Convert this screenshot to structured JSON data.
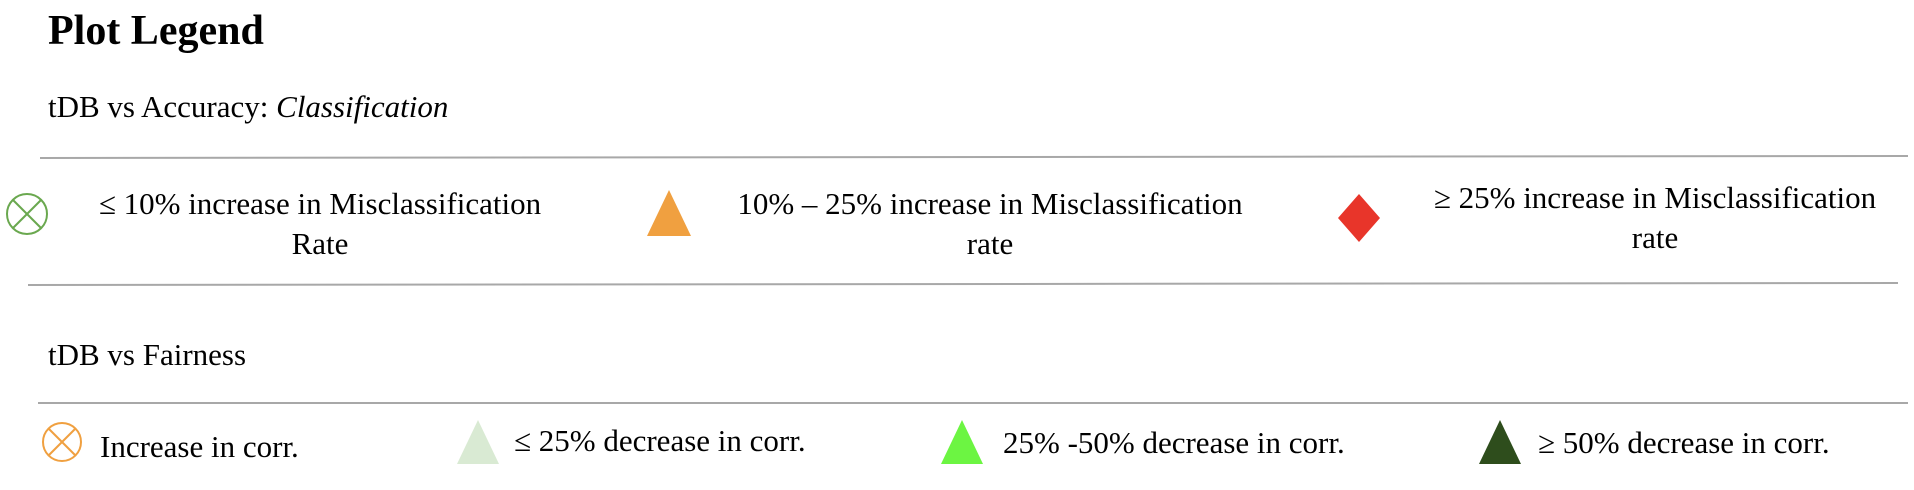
{
  "title": "Plot Legend",
  "accuracy_section": {
    "label_prefix": "tDB vs Accuracy: ",
    "label_italic": "Classification",
    "items": [
      {
        "line1": "≤ 10% increase in Misclassification",
        "line2": "Rate",
        "icon": "circled-x-icon",
        "color": "#6aa84f"
      },
      {
        "line1": "10% – 25% increase in Misclassification",
        "line2": "rate",
        "icon": "triangle-icon",
        "color": "#f0a040"
      },
      {
        "line1": "≥ 25% increase in Misclassification",
        "line2": "rate",
        "icon": "diamond-icon",
        "color": "#e8352a"
      }
    ]
  },
  "fairness_section": {
    "label": "tDB vs Fairness",
    "items": [
      {
        "text": "Increase in corr.",
        "icon": "circled-x-icon",
        "color": "#f0a040"
      },
      {
        "text": "≤ 25% decrease in corr.",
        "icon": "triangle-icon",
        "color": "#d9ead3"
      },
      {
        "text": "25% -50% decrease in corr.",
        "icon": "triangle-icon",
        "color": "#6cf542"
      },
      {
        "text": "≥ 50% decrease in corr.",
        "icon": "triangle-icon",
        "color": "#2e4d1c"
      }
    ]
  }
}
